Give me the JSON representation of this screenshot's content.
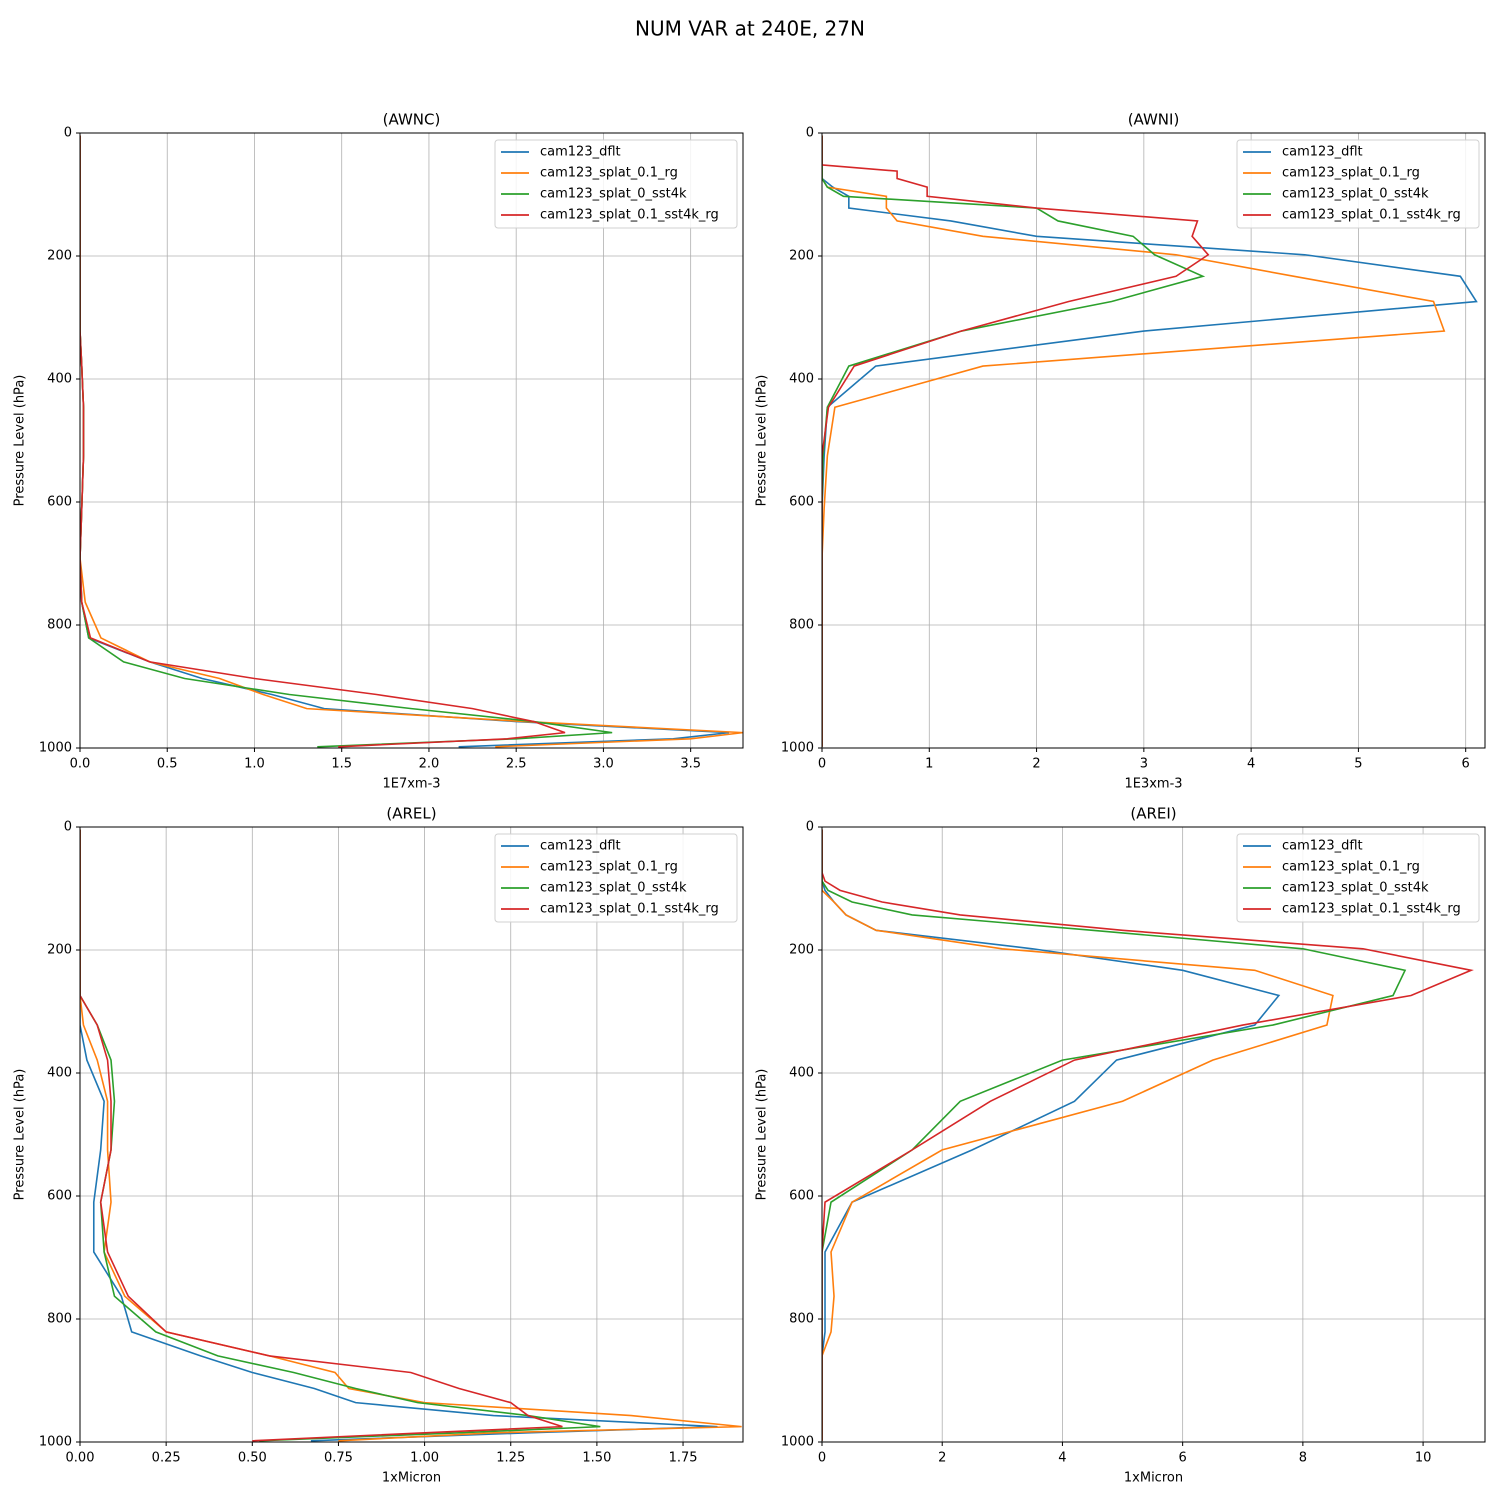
{
  "title": "NUM VAR at 240E, 27N",
  "chart_data": [
    {
      "type": "line",
      "title": "(AWNC)",
      "xlabel": "1E7xm-3",
      "ylabel": "Pressure Level (hPa)",
      "y": [
        4,
        8,
        14,
        25,
        36,
        43,
        52,
        62,
        74,
        88,
        103,
        122,
        143,
        168,
        198,
        233,
        274,
        322,
        379,
        446,
        525,
        610,
        691,
        763,
        821,
        860,
        887,
        913,
        936,
        957,
        975,
        985,
        998
      ],
      "series": [
        {
          "name": "cam123_dflt",
          "color": "#1f77b4",
          "values": [
            0,
            0,
            0,
            0,
            0,
            0,
            0,
            0,
            0,
            0,
            0,
            0,
            0,
            0,
            0,
            0,
            0,
            0,
            0.01,
            0.02,
            0.02,
            0.01,
            0,
            0.01,
            0.05,
            0.4,
            0.7,
            1.1,
            1.4,
            2.5,
            3.72,
            3.4,
            2.17
          ]
        },
        {
          "name": "cam123_splat_0.1_rg",
          "color": "#ff7f0e",
          "values": [
            0,
            0,
            0,
            0,
            0,
            0,
            0,
            0,
            0,
            0,
            0,
            0,
            0,
            0,
            0,
            0,
            0,
            0,
            0.01,
            0.02,
            0.02,
            0.01,
            0,
            0.03,
            0.12,
            0.4,
            0.8,
            1.05,
            1.3,
            2.55,
            3.8,
            3.5,
            2.38
          ]
        },
        {
          "name": "cam123_splat_0_sst4k",
          "color": "#2ca02c",
          "values": [
            0,
            0,
            0,
            0,
            0,
            0,
            0,
            0,
            0,
            0,
            0,
            0,
            0,
            0,
            0,
            0,
            0,
            0,
            0.01,
            0.02,
            0.02,
            0.01,
            0,
            0.01,
            0.05,
            0.25,
            0.6,
            1.2,
            1.9,
            2.6,
            3.05,
            2.5,
            1.36
          ]
        },
        {
          "name": "cam123_splat_0.1_sst4k_rg",
          "color": "#d62728",
          "values": [
            0,
            0,
            0,
            0,
            0,
            0,
            0,
            0,
            0,
            0,
            0,
            0,
            0,
            0,
            0,
            0,
            0,
            0,
            0.01,
            0.02,
            0.02,
            0.01,
            0,
            0.01,
            0.06,
            0.4,
            1.0,
            1.7,
            2.25,
            2.6,
            2.78,
            2.45,
            1.48
          ]
        }
      ],
      "xlim": [
        0,
        3.8
      ],
      "xticks": [
        {
          "value": 0,
          "label": "0.0"
        },
        0.5,
        {
          "value": 1,
          "label": "1.0"
        },
        1.5,
        {
          "value": 2,
          "label": "2.0"
        },
        2.5,
        {
          "value": 3,
          "label": "3.0"
        },
        3.5
      ],
      "ylim": [
        1000,
        0
      ],
      "yticks": [
        0,
        200,
        400,
        600,
        800,
        1000
      ],
      "grid": true,
      "legend": "upper right"
    },
    {
      "type": "line",
      "title": "(AWNI)",
      "xlabel": "1E3xm-3",
      "ylabel": "Pressure Level (hPa)",
      "y": [
        4,
        8,
        14,
        25,
        36,
        43,
        52,
        62,
        74,
        88,
        103,
        122,
        143,
        168,
        198,
        233,
        274,
        322,
        379,
        446,
        525,
        610,
        691,
        763,
        821,
        860,
        887,
        913,
        936,
        957,
        975,
        985,
        998
      ],
      "series": [
        {
          "name": "cam123_dflt",
          "color": "#1f77b4",
          "values": [
            0,
            0,
            0,
            0,
            0,
            0,
            0,
            0,
            0,
            0.1,
            0.25,
            0.25,
            1.2,
            2.0,
            4.5,
            5.95,
            6.1,
            3.0,
            0.5,
            0.05,
            0.02,
            0,
            0,
            0,
            0,
            0,
            0,
            0,
            0,
            0,
            0,
            0,
            0
          ]
        },
        {
          "name": "cam123_splat_0.1_rg",
          "color": "#ff7f0e",
          "values": [
            0,
            0,
            0,
            0,
            0,
            0,
            0,
            0,
            0,
            0.05,
            0.6,
            0.6,
            0.7,
            1.5,
            3.3,
            4.4,
            5.7,
            5.8,
            1.5,
            0.12,
            0.05,
            0.02,
            0,
            0,
            0,
            0,
            0,
            0,
            0,
            0,
            0,
            0,
            0
          ]
        },
        {
          "name": "cam123_splat_0_sst4k",
          "color": "#2ca02c",
          "values": [
            0,
            0,
            0,
            0,
            0,
            0,
            0,
            0,
            0,
            0.05,
            0.2,
            2.0,
            2.2,
            2.9,
            3.1,
            3.55,
            2.7,
            1.3,
            0.25,
            0.05,
            0.01,
            0,
            0,
            0,
            0,
            0,
            0,
            0,
            0,
            0,
            0,
            0,
            0
          ]
        },
        {
          "name": "cam123_splat_0.1_sst4k_rg",
          "color": "#d62728",
          "values": [
            0,
            0,
            0,
            0,
            0,
            0,
            0,
            0.7,
            0.7,
            0.98,
            0.98,
            2.0,
            3.5,
            3.45,
            3.6,
            3.3,
            2.3,
            1.3,
            0.3,
            0.06,
            0,
            0,
            0,
            0,
            0,
            0,
            0,
            0,
            0,
            0,
            0,
            0,
            0
          ]
        }
      ],
      "xlim": [
        0,
        6.18
      ],
      "xticks": [
        0,
        1,
        2,
        3,
        4,
        5,
        6
      ],
      "ylim": [
        1000,
        0
      ],
      "yticks": [
        0,
        200,
        400,
        600,
        800,
        1000
      ],
      "grid": true,
      "legend": "upper right"
    },
    {
      "type": "line",
      "title": "(AREL)",
      "xlabel": "1xMicron",
      "ylabel": "Pressure Level (hPa)",
      "y": [
        4,
        8,
        14,
        25,
        36,
        43,
        52,
        62,
        74,
        88,
        103,
        122,
        143,
        168,
        198,
        233,
        274,
        322,
        379,
        446,
        525,
        610,
        691,
        763,
        821,
        860,
        887,
        913,
        936,
        957,
        975,
        985,
        998
      ],
      "series": [
        {
          "name": "cam123_dflt",
          "color": "#1f77b4",
          "values": [
            0,
            0,
            0,
            0,
            0,
            0,
            0,
            0,
            0,
            0,
            0,
            0,
            0,
            0,
            0,
            0,
            0,
            0,
            0.02,
            0.07,
            0.06,
            0.04,
            0.04,
            0.12,
            0.15,
            0.35,
            0.5,
            0.68,
            0.8,
            1.2,
            1.85,
            1.3,
            0.67
          ]
        },
        {
          "name": "cam123_splat_0.1_rg",
          "color": "#ff7f0e",
          "values": [
            0,
            0,
            0,
            0,
            0,
            0,
            0,
            0,
            0,
            0,
            0,
            0,
            0,
            0,
            0,
            0,
            0,
            0.01,
            0.05,
            0.08,
            0.08,
            0.09,
            0.07,
            0.13,
            0.25,
            0.55,
            0.74,
            0.78,
            1.0,
            1.6,
            1.92,
            1.2,
            0.75
          ]
        },
        {
          "name": "cam123_splat_0_sst4k",
          "color": "#2ca02c",
          "values": [
            0,
            0,
            0,
            0,
            0,
            0,
            0,
            0,
            0,
            0,
            0,
            0,
            0,
            0,
            0,
            0,
            0,
            0.05,
            0.09,
            0.1,
            0.09,
            0.06,
            0.07,
            0.1,
            0.22,
            0.4,
            0.62,
            0.8,
            0.98,
            1.3,
            1.51,
            1.1,
            0.52
          ]
        },
        {
          "name": "cam123_splat_0.1_sst4k_rg",
          "color": "#d62728",
          "values": [
            0,
            0,
            0,
            0,
            0,
            0,
            0,
            0,
            0,
            0,
            0,
            0,
            0,
            0,
            0,
            0,
            0,
            0.05,
            0.08,
            0.09,
            0.09,
            0.06,
            0.08,
            0.14,
            0.25,
            0.55,
            0.96,
            1.1,
            1.25,
            1.3,
            1.4,
            1.0,
            0.5
          ]
        }
      ],
      "xlim": [
        0,
        1.924
      ],
      "xticks": [
        {
          "value": 0,
          "label": "0.00"
        },
        0.25,
        {
          "value": 0.5,
          "label": "0.50"
        },
        0.75,
        {
          "value": 1,
          "label": "1.00"
        },
        1.25,
        {
          "value": 1.5,
          "label": "1.50"
        },
        1.75
      ],
      "ylim": [
        1000,
        0
      ],
      "yticks": [
        0,
        200,
        400,
        600,
        800,
        1000
      ],
      "grid": true,
      "legend": "upper right"
    },
    {
      "type": "line",
      "title": "(AREI)",
      "xlabel": "1xMicron",
      "ylabel": "Pressure Level (hPa)",
      "y": [
        4,
        8,
        14,
        25,
        36,
        43,
        52,
        62,
        74,
        88,
        103,
        122,
        143,
        168,
        198,
        233,
        274,
        322,
        379,
        446,
        525,
        610,
        691,
        763,
        821,
        860,
        887,
        913,
        936,
        957,
        975,
        985,
        998
      ],
      "series": [
        {
          "name": "cam123_dflt",
          "color": "#1f77b4",
          "values": [
            0,
            0,
            0,
            0,
            0,
            0,
            0,
            0,
            0,
            0,
            0.05,
            0.2,
            0.4,
            0.9,
            3.5,
            6.0,
            7.6,
            7.2,
            4.9,
            4.2,
            2.5,
            0.5,
            0.05,
            0.05,
            0.05,
            0,
            0,
            0,
            0,
            0,
            0,
            0,
            0
          ]
        },
        {
          "name": "cam123_splat_0.1_rg",
          "color": "#ff7f0e",
          "values": [
            0,
            0,
            0,
            0,
            0,
            0,
            0,
            0,
            0,
            0,
            0,
            0.2,
            0.4,
            0.9,
            3.0,
            7.2,
            8.5,
            8.4,
            6.5,
            5.0,
            2.0,
            0.5,
            0.15,
            0.2,
            0.15,
            0,
            0,
            0,
            0,
            0,
            0,
            0,
            0
          ]
        },
        {
          "name": "cam123_splat_0_sst4k",
          "color": "#2ca02c",
          "values": [
            0,
            0,
            0,
            0,
            0,
            0,
            0,
            0,
            0,
            0,
            0.1,
            0.5,
            1.5,
            4.5,
            8.0,
            9.7,
            9.5,
            7.5,
            4.0,
            2.3,
            1.5,
            0.15,
            0,
            0,
            0,
            0,
            0,
            0,
            0,
            0,
            0,
            0,
            0
          ]
        },
        {
          "name": "cam123_splat_0.1_sst4k_rg",
          "color": "#d62728",
          "values": [
            0,
            0,
            0,
            0,
            0,
            0,
            0,
            0,
            0,
            0.05,
            0.3,
            1.0,
            2.3,
            5.0,
            9.0,
            10.8,
            9.8,
            7.0,
            4.2,
            2.8,
            1.5,
            0.05,
            0,
            0,
            0,
            0,
            0,
            0,
            0,
            0,
            0,
            0,
            0
          ]
        }
      ],
      "xlim": [
        0,
        11.03
      ],
      "xticks": [
        0,
        2,
        4,
        6,
        8,
        10
      ],
      "ylim": [
        1000,
        0
      ],
      "yticks": [
        0,
        200,
        400,
        600,
        800,
        1000
      ],
      "grid": true,
      "legend": "upper right"
    }
  ]
}
